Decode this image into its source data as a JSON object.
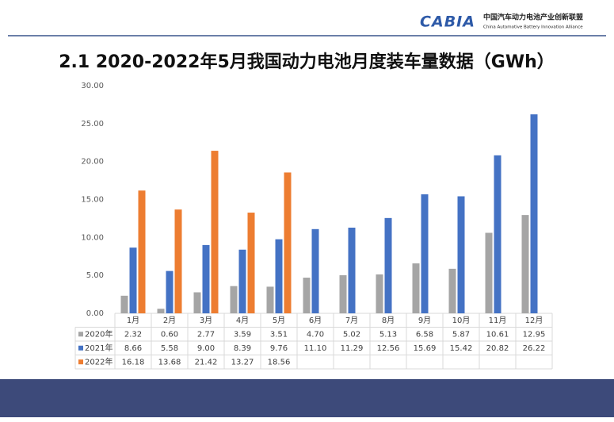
{
  "header": {
    "logo": "CABIA",
    "org_cn": "中国汽车动力电池产业创新联盟",
    "org_en": "China Automotive Battery Innovation Alliance"
  },
  "chart_data": {
    "type": "bar",
    "title": "2.1 2020-2022年5月我国动力电池月度装车量数据（GWh）",
    "categories": [
      "1月",
      "2月",
      "3月",
      "4月",
      "5月",
      "6月",
      "7月",
      "8月",
      "9月",
      "10月",
      "11月",
      "12月"
    ],
    "series": [
      {
        "name": "2020年",
        "color": "#a5a5a5",
        "values": [
          2.32,
          0.6,
          2.77,
          3.59,
          3.51,
          4.7,
          5.02,
          5.13,
          6.58,
          5.87,
          10.61,
          12.95
        ],
        "value_labels": [
          "2.32",
          "0.60",
          "2.77",
          "3.59",
          "3.51",
          "4.70",
          "5.02",
          "5.13",
          "6.58",
          "5.87",
          "10.61",
          "12.95"
        ]
      },
      {
        "name": "2021年",
        "color": "#4472c4",
        "values": [
          8.66,
          5.58,
          9,
          8.39,
          9.76,
          11.1,
          11.29,
          12.56,
          15.69,
          15.42,
          20.82,
          26.22
        ],
        "value_labels": [
          "8.66",
          "5.58",
          "9.00",
          "8.39",
          "9.76",
          "11.10",
          "11.29",
          "12.56",
          "15.69",
          "15.42",
          "20.82",
          "26.22"
        ]
      },
      {
        "name": "2022年",
        "color": "#ed7d31",
        "values": [
          16.18,
          13.68,
          21.42,
          13.27,
          18.56,
          null,
          null,
          null,
          null,
          null,
          null,
          null
        ],
        "value_labels": [
          "16.18",
          "13.68",
          "21.42",
          "13.27",
          "18.56",
          null,
          null,
          null,
          null,
          null,
          null,
          null
        ]
      }
    ],
    "ylim": [
      0,
      30
    ],
    "yticks": [
      {
        "value": 0,
        "label": "0.00"
      },
      {
        "value": 5,
        "label": "5.00"
      },
      {
        "value": 10,
        "label": "10.00"
      },
      {
        "value": 15,
        "label": "15.00"
      },
      {
        "value": 20,
        "label": "20.00"
      },
      {
        "value": 25,
        "label": "25.00"
      },
      {
        "value": 30,
        "label": "30.00"
      }
    ],
    "grid": false,
    "data_table": true
  }
}
